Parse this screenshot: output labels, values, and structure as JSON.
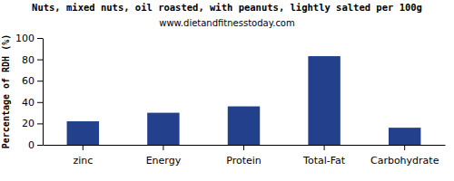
{
  "chart_data": {
    "type": "bar",
    "title": "Nuts, mixed nuts, oil roasted, with peanuts, lightly salted per 100g",
    "subtitle": "www.dietandfitnesstoday.com",
    "y_label": "Percentage of RDH (%)",
    "categories": [
      "zinc",
      "Energy",
      "Protein",
      "Total-Fat",
      "Carbohydrate"
    ],
    "values": [
      22,
      30,
      36,
      83,
      16
    ],
    "color": "#22408c",
    "ylim": [
      0,
      100
    ],
    "yticks": [
      0,
      20,
      40,
      60,
      80,
      100
    ],
    "grid": false
  }
}
